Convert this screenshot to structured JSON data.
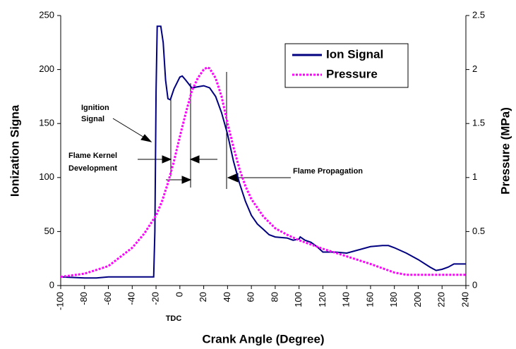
{
  "chart_data": {
    "type": "line",
    "xlabel": "Crank Angle (Degree)",
    "ylabel": "Ionization Signa",
    "y2label": "Pressure (MPa)",
    "xlim": [
      -100,
      240
    ],
    "xticks": [
      -100,
      -80,
      -60,
      -40,
      -20,
      0,
      20,
      40,
      60,
      80,
      100,
      120,
      140,
      160,
      180,
      200,
      220,
      240
    ],
    "ylim": [
      0,
      250
    ],
    "yticks": [
      0,
      50,
      100,
      150,
      200,
      250
    ],
    "y2lim": [
      0,
      2.5
    ],
    "y2ticks": [
      0,
      0.5,
      1,
      1.5,
      2,
      2.5
    ],
    "legend": "upper right",
    "annotations": {
      "tdc": "TDC",
      "ignition": [
        "Ignition",
        "Signal"
      ],
      "kernel": [
        "Flame Kernel",
        "Development"
      ],
      "propagation": "Flame Propagation"
    },
    "series": [
      {
        "name": "Ion Signal",
        "color": "#000080",
        "axis": "y",
        "x": [
          -100,
          -80,
          -70,
          -60,
          -40,
          -22,
          -21,
          -20,
          -19,
          -16,
          -14,
          -12,
          -10,
          -8,
          -5,
          0,
          2,
          5,
          10,
          15,
          20,
          25,
          30,
          35,
          40,
          45,
          50,
          55,
          60,
          65,
          70,
          75,
          80,
          90,
          95,
          100,
          101,
          105,
          110,
          115,
          120,
          125,
          130,
          140,
          150,
          160,
          170,
          175,
          180,
          190,
          200,
          210,
          215,
          220,
          225,
          230,
          240
        ],
        "values": [
          8,
          7,
          7,
          8,
          8,
          8,
          50,
          180,
          240,
          240,
          225,
          190,
          173,
          172,
          182,
          193,
          194,
          190,
          183,
          184,
          185,
          183,
          175,
          160,
          140,
          115,
          95,
          78,
          65,
          57,
          52,
          47,
          45,
          44,
          42,
          43,
          45,
          42,
          40,
          36,
          31,
          31,
          31,
          30,
          33,
          36,
          37,
          37,
          35,
          30,
          24,
          17,
          14,
          15,
          17,
          20,
          20
        ]
      },
      {
        "name": "Pressure",
        "color": "#ff00ff",
        "axis": "y2",
        "x": [
          -100,
          -80,
          -60,
          -40,
          -30,
          -20,
          -15,
          -10,
          -5,
          0,
          5,
          10,
          15,
          20,
          23,
          25,
          30,
          35,
          40,
          45,
          50,
          55,
          60,
          70,
          80,
          90,
          100,
          120,
          140,
          160,
          180,
          190,
          200,
          240
        ],
        "values": [
          0.08,
          0.11,
          0.18,
          0.35,
          0.48,
          0.65,
          0.78,
          0.95,
          1.15,
          1.38,
          1.6,
          1.8,
          1.92,
          2.0,
          2.02,
          2.01,
          1.92,
          1.75,
          1.5,
          1.28,
          1.08,
          0.92,
          0.8,
          0.64,
          0.53,
          0.47,
          0.42,
          0.34,
          0.27,
          0.2,
          0.12,
          0.1,
          0.1,
          0.1
        ]
      }
    ]
  }
}
